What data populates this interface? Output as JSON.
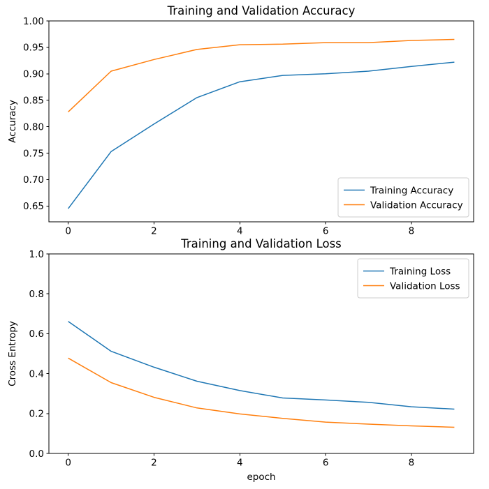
{
  "figure": {
    "background": "#ffffff",
    "palette": {
      "blue": "#1f77b4",
      "orange": "#ff7f0e"
    }
  },
  "chart_data": [
    {
      "type": "line",
      "title": "Training and Validation Accuracy",
      "xlabel": "",
      "ylabel": "Accuracy",
      "x": [
        0,
        1,
        2,
        3,
        4,
        5,
        6,
        7,
        8,
        9
      ],
      "series": [
        {
          "name": "Training Accuracy",
          "color": "#1f77b4",
          "values": [
            0.645,
            0.753,
            0.805,
            0.855,
            0.885,
            0.897,
            0.9,
            0.905,
            0.914,
            0.922
          ]
        },
        {
          "name": "Validation Accuracy",
          "color": "#ff7f0e",
          "values": [
            0.828,
            0.905,
            0.927,
            0.946,
            0.955,
            0.956,
            0.959,
            0.959,
            0.963,
            0.965
          ]
        }
      ],
      "xlim": [
        -0.45,
        9.45
      ],
      "ylim": [
        0.62,
        1.0
      ],
      "xticks": [
        0,
        2,
        4,
        6,
        8
      ],
      "xtick_labels": [
        "0",
        "2",
        "4",
        "6",
        "8"
      ],
      "yticks": [
        0.65,
        0.7,
        0.75,
        0.8,
        0.85,
        0.9,
        0.95,
        1.0
      ],
      "ytick_labels": [
        "0.65",
        "0.70",
        "0.75",
        "0.80",
        "0.85",
        "0.90",
        "0.95",
        "1.00"
      ],
      "legend_position": "lower right",
      "legend_labels": [
        "Training Accuracy",
        "Validation Accuracy"
      ],
      "grid": false
    },
    {
      "type": "line",
      "title": "Training and Validation Loss",
      "xlabel": "epoch",
      "ylabel": "Cross Entropy",
      "x": [
        0,
        1,
        2,
        3,
        4,
        5,
        6,
        7,
        8,
        9
      ],
      "series": [
        {
          "name": "Training Loss",
          "color": "#1f77b4",
          "values": [
            0.662,
            0.512,
            0.432,
            0.362,
            0.315,
            0.278,
            0.268,
            0.256,
            0.234,
            0.222
          ]
        },
        {
          "name": "Validation Loss",
          "color": "#ff7f0e",
          "values": [
            0.478,
            0.355,
            0.281,
            0.228,
            0.198,
            0.176,
            0.157,
            0.147,
            0.138,
            0.131
          ]
        }
      ],
      "xlim": [
        -0.45,
        9.45
      ],
      "ylim": [
        0.0,
        1.0
      ],
      "xticks": [
        0,
        2,
        4,
        6,
        8
      ],
      "xtick_labels": [
        "0",
        "2",
        "4",
        "6",
        "8"
      ],
      "yticks": [
        0.0,
        0.2,
        0.4,
        0.6,
        0.8,
        1.0
      ],
      "ytick_labels": [
        "0.0",
        "0.2",
        "0.4",
        "0.6",
        "0.8",
        "1.0"
      ],
      "legend_position": "upper right",
      "legend_labels": [
        "Training Loss",
        "Validation Loss"
      ],
      "grid": false
    }
  ]
}
